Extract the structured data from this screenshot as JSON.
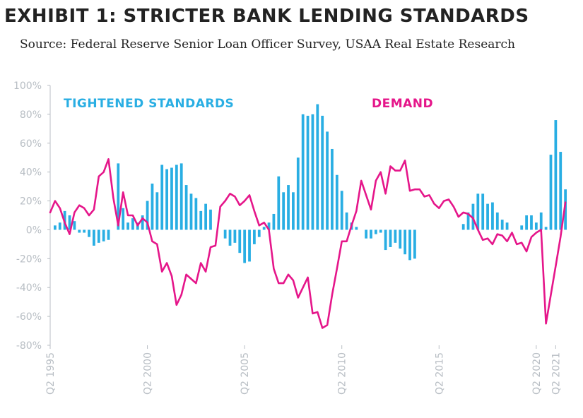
{
  "title": "EXHIBIT 1: STRICTER BANK LENDING STANDARDS",
  "subtitle": "Source: Federal Reserve Senior Loan Officer Survey, USAA Real Estate Research",
  "colors": {
    "tightened": "#29aee3",
    "demand": "#e5168a",
    "axis": "#b8bec4",
    "text": "#222222"
  },
  "chart_data": {
    "type": "bar",
    "title": "EXHIBIT 1: STRICTER BANK LENDING STANDARDS",
    "ylim": [
      -80,
      100
    ],
    "y_ticks": [
      -80,
      -60,
      -40,
      -20,
      0,
      20,
      40,
      60,
      80,
      100
    ],
    "y_tick_labels": [
      "-80%",
      "-60%",
      "-40%",
      "-20%",
      "0%",
      "20%",
      "40%",
      "60%",
      "80%",
      "100%"
    ],
    "x_tick_labels": [
      "Q2 1995",
      "Q2 2000",
      "Q2 2005",
      "Q2 2010",
      "Q2 2015",
      "Q2 2020",
      "Q2 2021"
    ],
    "x_tick_positions": [
      0,
      20,
      40,
      60,
      80,
      100,
      104
    ],
    "categories_start": "Q2 1995",
    "categories_end": "Q2 2021",
    "series": [
      {
        "name": "TIGHTENED STANDARDS",
        "style": "bar",
        "values": [
          0,
          3,
          5,
          13,
          10,
          6,
          -2,
          -2,
          -5,
          -11,
          -9,
          -8,
          -7,
          0,
          46,
          15,
          5,
          8,
          5,
          10,
          20,
          32,
          26,
          45,
          42,
          43,
          45,
          46,
          31,
          25,
          22,
          13,
          18,
          14,
          0,
          0,
          -6,
          -11,
          -9,
          -16,
          -23,
          -22,
          -10,
          -5,
          2,
          5,
          11,
          37,
          26,
          31,
          26,
          50,
          80,
          79,
          80,
          87,
          79,
          68,
          56,
          38,
          27,
          12,
          5,
          2,
          0,
          -6,
          -6,
          -3,
          -2,
          -14,
          -12,
          -9,
          -13,
          -17,
          -21,
          -20,
          0,
          0,
          0,
          0,
          0,
          0,
          0,
          0,
          0,
          4,
          12,
          18,
          25,
          25,
          18,
          19,
          12,
          7,
          5,
          0,
          0,
          3,
          10,
          10,
          5,
          12,
          2,
          52,
          76,
          54,
          28,
          0
        ]
      },
      {
        "name": "DEMAND",
        "style": "line",
        "values": [
          12,
          20,
          15,
          5,
          -3,
          12,
          17,
          15,
          10,
          14,
          37,
          40,
          49,
          22,
          3,
          26,
          10,
          10,
          3,
          8,
          5,
          -8,
          -10,
          -29,
          -23,
          -32,
          -52,
          -45,
          -31,
          -34,
          -37,
          -23,
          -29,
          -12,
          -11,
          16,
          20,
          25,
          23,
          17,
          20,
          24,
          13,
          3,
          5,
          0,
          -27,
          -37,
          -37,
          -31,
          -35,
          -47,
          -40,
          -33,
          -58,
          -57,
          -68,
          -66,
          -45,
          -27,
          -8,
          -8,
          3,
          13,
          34,
          24,
          14,
          34,
          40,
          25,
          44,
          41,
          41,
          48,
          27,
          28,
          28,
          23,
          24,
          18,
          15,
          20,
          21,
          16,
          9,
          12,
          11,
          8,
          0,
          -7,
          -6,
          -10,
          -3,
          -4,
          -8,
          -2,
          -10,
          -9,
          -15,
          -5,
          -2,
          0,
          -65,
          -45,
          -25,
          -5,
          19
        ]
      }
    ],
    "annotations": [
      "TIGHTENED STANDARDS",
      "DEMAND"
    ]
  }
}
